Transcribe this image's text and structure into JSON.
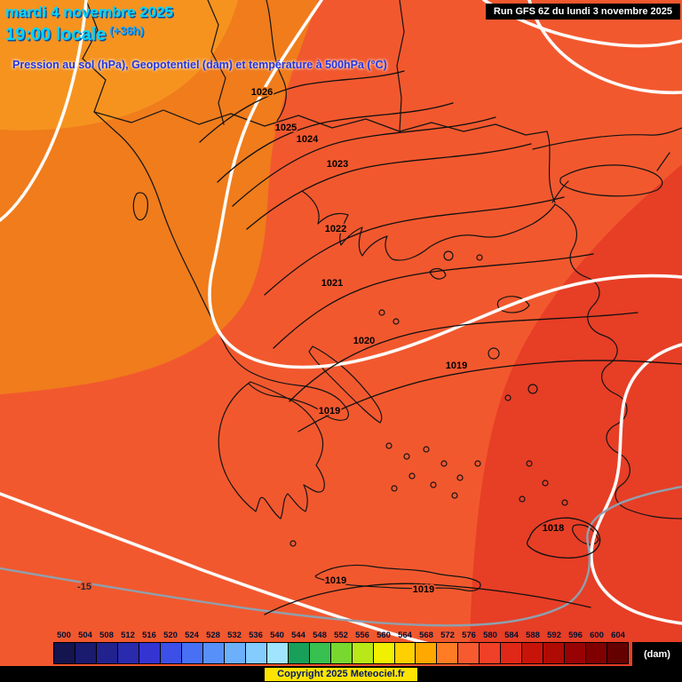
{
  "colors": {
    "bg_red": "#f2582e",
    "bg_orange": "#f07c1c",
    "bg_orange_light": "#f6931f",
    "bg_red_deep": "#e73e26",
    "header_cyan": "#00d4ff",
    "subtitle_blue": "#2334e0",
    "white_contour": "#ffffff",
    "gray_contour": "#8fa0ae",
    "copyright_bg": "#ffe400"
  },
  "header": {
    "date_line": "mardi 4 novembre 2025",
    "time_line": "19:00 locale",
    "time_offset": "(+36h)",
    "subtitle": "Pression au sol (hPa), Geopotentiel (dam) et température à 500hPa (°C)"
  },
  "run_info": "Run GFS 6Z du lundi 3 novembre 2025",
  "map": {
    "isobar_labels": [
      "1026",
      "1025",
      "1024",
      "1023",
      "1022",
      "1021",
      "1020",
      "1019",
      "1019",
      "1018",
      "1019",
      "1019"
    ],
    "temperature_label": "-15"
  },
  "scale": {
    "unit": "(dam)",
    "values": [
      "500",
      "504",
      "508",
      "512",
      "516",
      "520",
      "524",
      "528",
      "532",
      "536",
      "540",
      "544",
      "548",
      "552",
      "556",
      "560",
      "564",
      "568",
      "572",
      "576",
      "580",
      "584",
      "588",
      "592",
      "596",
      "600",
      "604"
    ],
    "colors": [
      "#14144e",
      "#1a1a6e",
      "#22228e",
      "#2a2aae",
      "#3434d2",
      "#3c50e8",
      "#4870f4",
      "#5890fa",
      "#6cb0fc",
      "#84ccfe",
      "#a0e4ff",
      "#18a05a",
      "#38c050",
      "#78d830",
      "#b8e818",
      "#f0f000",
      "#ffd000",
      "#ffa800",
      "#ff7c24",
      "#f85a30",
      "#f04028",
      "#e02818",
      "#c81408",
      "#b00a04",
      "#980202",
      "#800000",
      "#640000"
    ]
  },
  "footer": {
    "copyright": "Copyright 2025 Meteociel.fr"
  }
}
